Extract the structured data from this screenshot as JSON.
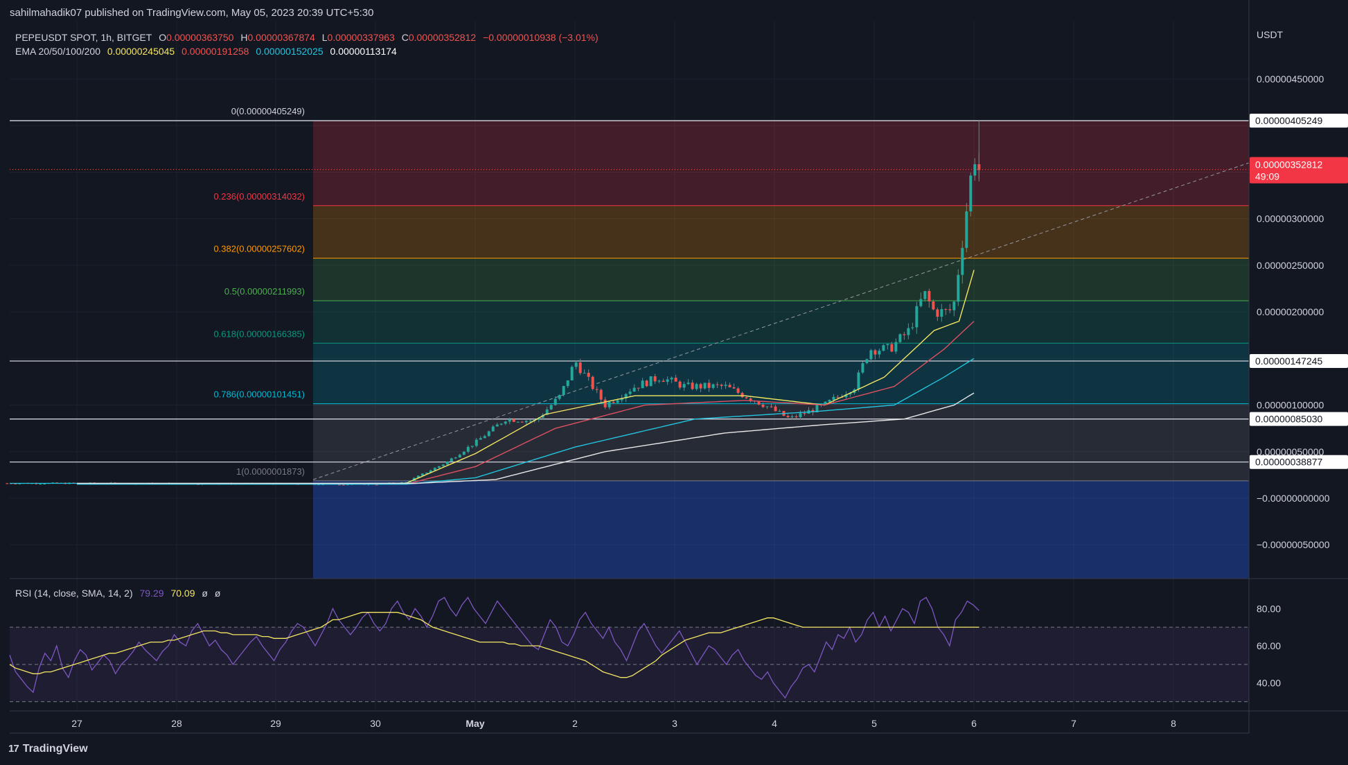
{
  "header": {
    "published": "sahilmahadik07 published on TradingView.com, May 05, 2023 20:39 UTC+5:30",
    "symbol": "PEPEUSDT SPOT, 1h, BITGET",
    "o_label": "O",
    "o": "0.00000363750",
    "h_label": "H",
    "h": "0.00000367874",
    "l_label": "L",
    "l": "0.00000337963",
    "c_label": "C",
    "c": "0.00000352812",
    "change": "−0.00000010938 (−3.01%)",
    "ema_label": "EMA 20/50/100/200",
    "ema20": "0.00000245045",
    "ema50": "0.00000191258",
    "ema100": "0.00000152025",
    "ema200": "0.00000113174",
    "rsi_label": "RSI (14, close, SMA, 14, 2)",
    "rsi_value": "79.29",
    "rsi_sma": "70.09",
    "rsi_na1": "ø",
    "rsi_na2": "ø"
  },
  "unit": "USDT",
  "brand": "TradingView",
  "colors": {
    "background": "#131722",
    "up": "#26a69a",
    "down": "#ef5350",
    "ema20": "#f5e663",
    "ema50": "#e05060",
    "ema100": "#22c5e0",
    "ema200": "#e8e8e8",
    "rsi": "#7e57c2",
    "rsi_sma": "#f5e663",
    "price_tag": "#f23645"
  },
  "chart_data": [
    {
      "type": "candlestick",
      "title": "PEPEUSDT SPOT, 1h, BITGET",
      "ylabel": "USDT",
      "ylim": [
        -8.5e-07,
        5.2e-06
      ],
      "x_ticks": [
        "27",
        "28",
        "29",
        "30",
        "May",
        "2",
        "3",
        "4",
        "5",
        "6",
        "7",
        "8"
      ],
      "y_ticks": [
        "0.00000450000",
        "0.00000300000",
        "0.00000250000",
        "0.00000200000",
        "0.00000100000",
        "0.00000050000",
        "−0.00000000000",
        "−0.00000050000"
      ],
      "price_tags": [
        {
          "value": 4.05249e-06,
          "label": "0.00000405249"
        },
        {
          "value": 1.47245e-06,
          "label": "0.00000147245"
        },
        {
          "value": 8.503e-07,
          "label": "0.00000085030"
        },
        {
          "value": 3.8877e-07,
          "label": "0.00000038877"
        }
      ],
      "last_price": {
        "value": 3.52812e-06,
        "label": "0.00000352812",
        "countdown": "49:09"
      },
      "fibonacci": [
        {
          "level": "0",
          "value": 4.05249e-06,
          "label": "0(0.00000405249)",
          "color": "#d1d4dc"
        },
        {
          "level": "0.236",
          "value": 3.14032e-06,
          "label": "0.236(0.00000314032)",
          "color": "#f23645"
        },
        {
          "level": "0.382",
          "value": 2.57602e-06,
          "label": "0.382(0.00000257602)",
          "color": "#ff9800"
        },
        {
          "level": "0.5",
          "value": 2.11993e-06,
          "label": "0.5(0.00000211993)",
          "color": "#4caf50"
        },
        {
          "level": "0.618",
          "value": 1.66385e-06,
          "label": "0.618(0.00000166385)",
          "color": "#089981"
        },
        {
          "level": "0.786",
          "value": 1.01451e-06,
          "label": "0.786(0.00000101451)",
          "color": "#00bcd4"
        },
        {
          "level": "1",
          "value": 1.873e-07,
          "label": "1(0.0000001873)",
          "color": "#787b86"
        }
      ],
      "fib_zone_colors": [
        "rgba(242,54,69,0.22)",
        "rgba(255,152,0,0.22)",
        "rgba(76,175,80,0.20)",
        "rgba(8,153,129,0.20)",
        "rgba(0,188,212,0.18)",
        "rgba(120,123,134,0.20)",
        "rgba(41,98,255,0.32)"
      ],
      "trendline": [
        [
          2e-07,
          3.6e-06
        ]
      ],
      "close_anchors": [
        [
          0,
          1.6e-07
        ],
        [
          3,
          1.5e-07
        ],
        [
          3.3,
          1.7e-07
        ],
        [
          3.7,
          3.8e-07
        ],
        [
          4.0,
          6e-07
        ],
        [
          4.3,
          8.5e-07
        ],
        [
          4.6,
          8.3e-07
        ],
        [
          4.85,
          1.1e-06
        ],
        [
          5.0,
          1.47e-06
        ],
        [
          5.3,
          1e-06
        ],
        [
          5.6,
          1.2e-06
        ],
        [
          5.85,
          1.3e-06
        ],
        [
          6.1,
          1.2e-06
        ],
        [
          6.5,
          1.2e-06
        ],
        [
          6.9,
          1e-06
        ],
        [
          7.15,
          8.5e-07
        ],
        [
          7.5,
          1e-06
        ],
        [
          7.8,
          1.2e-06
        ],
        [
          7.95,
          1.6e-06
        ],
        [
          8.15,
          1.6e-06
        ],
        [
          8.35,
          1.8e-06
        ],
        [
          8.5,
          2.2e-06
        ],
        [
          8.6,
          2e-06
        ],
        [
          8.75,
          2e-06
        ],
        [
          8.8,
          2.1e-06
        ],
        [
          8.9,
          2.9e-06
        ],
        [
          8.95,
          3.3e-06
        ],
        [
          9.0,
          3.7e-06
        ],
        [
          9.05,
          3.53e-06
        ]
      ],
      "ema_anchors": {
        "ema20": [
          [
            0,
            1.5e-07
          ],
          [
            3.3,
            1.6e-07
          ],
          [
            4.0,
            4.8e-07
          ],
          [
            4.7,
            9e-07
          ],
          [
            5.6,
            1.1e-06
          ],
          [
            6.7,
            1.1e-06
          ],
          [
            7.5,
            1e-06
          ],
          [
            8.1,
            1.3e-06
          ],
          [
            8.6,
            1.8e-06
          ],
          [
            8.85,
            1.9e-06
          ],
          [
            9.0,
            2.45e-06
          ]
        ],
        "ema50": [
          [
            0,
            1.5e-07
          ],
          [
            3.3,
            1.5e-07
          ],
          [
            4.0,
            3.4e-07
          ],
          [
            4.8,
            7.5e-07
          ],
          [
            5.7,
            1e-06
          ],
          [
            6.7,
            1.05e-06
          ],
          [
            7.5,
            1e-06
          ],
          [
            8.2,
            1.2e-06
          ],
          [
            8.7,
            1.6e-06
          ],
          [
            9.0,
            1.9e-06
          ]
        ],
        "ema100": [
          [
            0,
            1.5e-07
          ],
          [
            3.3,
            1.5e-07
          ],
          [
            4.0,
            2.2e-07
          ],
          [
            5.0,
            5.5e-07
          ],
          [
            6.2,
            8.5e-07
          ],
          [
            7.4,
            9.3e-07
          ],
          [
            8.2,
            1e-06
          ],
          [
            8.7,
            1.3e-06
          ],
          [
            9.0,
            1.5e-06
          ]
        ],
        "ema200": [
          [
            0,
            1.6e-07
          ],
          [
            3.4,
            1.6e-07
          ],
          [
            4.2,
            2e-07
          ],
          [
            5.3,
            5e-07
          ],
          [
            6.5,
            7e-07
          ],
          [
            7.5,
            7.9e-07
          ],
          [
            8.3,
            8.5e-07
          ],
          [
            8.8,
            1e-06
          ],
          [
            9.0,
            1.13e-06
          ]
        ]
      }
    },
    {
      "type": "line",
      "title": "RSI (14, close, SMA, 14, 2)",
      "ylim": [
        25,
        95
      ],
      "y_ticks": [
        "80.00",
        "60.00",
        "40.00"
      ],
      "bands": [
        70,
        50,
        30
      ],
      "series": [
        {
          "name": "RSI",
          "values": [
            55,
            46,
            42,
            38,
            35,
            48,
            56,
            52,
            60,
            48,
            43,
            52,
            58,
            55,
            47,
            51,
            55,
            52,
            45,
            50,
            53,
            57,
            62,
            58,
            55,
            52,
            57,
            60,
            66,
            62,
            60,
            68,
            72,
            66,
            60,
            63,
            58,
            55,
            50,
            54,
            58,
            62,
            65,
            60,
            56,
            52,
            58,
            62,
            68,
            72,
            70,
            65,
            60,
            66,
            72,
            80,
            74,
            70,
            66,
            70,
            75,
            78,
            72,
            68,
            72,
            80,
            84,
            78,
            74,
            80,
            76,
            70,
            76,
            84,
            86,
            80,
            76,
            82,
            86,
            80,
            76,
            72,
            78,
            84,
            80,
            76,
            72,
            68,
            64,
            60,
            58,
            66,
            74,
            70,
            62,
            60,
            66,
            74,
            78,
            72,
            68,
            64,
            70,
            62,
            58,
            52,
            60,
            68,
            72,
            66,
            60,
            56,
            60,
            64,
            68,
            62,
            56,
            50,
            55,
            60,
            58,
            54,
            50,
            55,
            58,
            52,
            48,
            44,
            42,
            46,
            40,
            36,
            32,
            38,
            42,
            48,
            50,
            46,
            54,
            62,
            58,
            66,
            64,
            70,
            62,
            66,
            74,
            78,
            70,
            76,
            68,
            74,
            80,
            78,
            72,
            84,
            86,
            80,
            70,
            66,
            60,
            74,
            78,
            84,
            82,
            79
          ]
        },
        {
          "name": "SMA",
          "values": [
            50,
            48,
            47,
            46,
            45,
            45,
            46,
            46,
            47,
            48,
            49,
            50,
            51,
            52,
            53,
            54,
            55,
            56,
            56,
            57,
            58,
            59,
            60,
            61,
            62,
            62,
            62,
            63,
            63,
            64,
            65,
            66,
            67,
            68,
            68,
            68,
            67,
            67,
            66,
            66,
            66,
            66,
            66,
            65,
            65,
            64,
            64,
            64,
            65,
            66,
            67,
            68,
            69,
            70,
            72,
            74,
            74,
            75,
            76,
            77,
            78,
            78,
            78,
            78,
            78,
            78,
            78,
            77,
            76,
            75,
            74,
            72,
            70,
            69,
            68,
            67,
            66,
            65,
            64,
            63,
            62,
            62,
            62,
            62,
            62,
            61,
            61,
            60,
            60,
            60,
            60,
            59,
            58,
            57,
            56,
            55,
            54,
            53,
            52,
            50,
            48,
            46,
            45,
            44,
            43,
            43,
            44,
            46,
            48,
            50,
            52,
            55,
            57,
            59,
            61,
            63,
            64,
            65,
            66,
            67,
            67,
            67,
            68,
            69,
            70,
            71,
            72,
            73,
            74,
            75,
            75,
            74,
            73,
            72,
            71,
            70,
            70,
            70,
            70,
            70,
            70,
            70,
            70,
            70,
            70,
            70,
            70,
            70,
            70,
            70,
            70,
            70,
            70,
            70,
            70,
            70,
            70,
            70,
            70,
            70,
            70,
            70,
            70,
            70,
            70,
            70
          ]
        }
      ]
    }
  ]
}
